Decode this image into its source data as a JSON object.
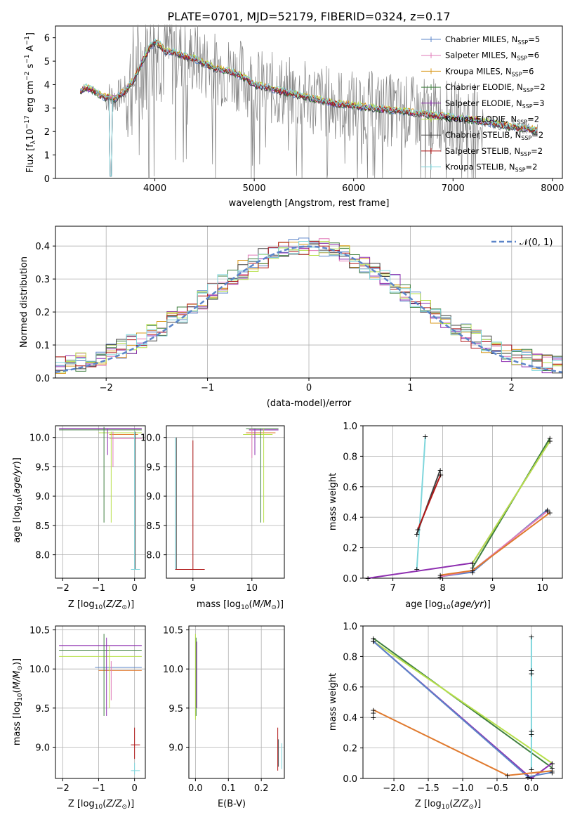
{
  "figure": {
    "title": "PLATE=0701, MJD=52179, FIBERID=0324, z=0.17"
  },
  "legend_entries": [
    {
      "label": "Chabrier MILES, N",
      "sub": "SSP",
      "tail": "=5",
      "color": "#5b84c8"
    },
    {
      "label": "Salpeter MILES, N",
      "sub": "SSP",
      "tail": "=6",
      "color": "#e07ab8"
    },
    {
      "label": "Kroupa MILES, N",
      "sub": "SSP",
      "tail": "=6",
      "color": "#d99a1e"
    },
    {
      "label": "Chabrier ELODIE, N",
      "sub": "SSP",
      "tail": "=2",
      "color": "#3f7f3f"
    },
    {
      "label": "Salpeter ELODIE, N",
      "sub": "SSP",
      "tail": "=3",
      "color": "#8e2fb0"
    },
    {
      "label": "Kroupa ELODIE, N",
      "sub": "SSP",
      "tail": "=2",
      "color": "#b7e04a"
    },
    {
      "label": "Chabrier STELIB, N",
      "sub": "SSP",
      "tail": "=2",
      "color": "#444444"
    },
    {
      "label": "Salpeter STELIB, N",
      "sub": "SSP",
      "tail": "=2",
      "color": "#b01818"
    },
    {
      "label": "Kroupa STELIB, N",
      "sub": "SSP",
      "tail": "=2",
      "color": "#7fd6dc"
    }
  ],
  "chart_data": [
    {
      "id": "spectrum",
      "type": "line",
      "xlabel": "wavelength [Angstrom, rest frame]",
      "ylabel": "Flux [f",
      "ylabel_parts": [
        "Flux [f",
        "λ",
        "10",
        "−17",
        " erg cm",
        "−2",
        " s",
        "−1",
        " A",
        "−1",
        "]"
      ],
      "xlim": [
        3000,
        8100
      ],
      "ylim": [
        0,
        6.5
      ],
      "xticks": [
        "4000",
        "5000",
        "6000",
        "7000",
        "8000"
      ],
      "yticks": [
        "0",
        "1",
        "2",
        "3",
        "4",
        "5",
        "6"
      ],
      "data_color": "#808080",
      "model_continuum": {
        "x": [
          3250,
          3300,
          3350,
          3400,
          3450,
          3500,
          3550,
          3600,
          3650,
          3700,
          3750,
          3800,
          3850,
          3900,
          3950,
          4000,
          4050,
          4100,
          4200,
          4300,
          4400,
          4500,
          4600,
          4700,
          4800,
          4900,
          5000,
          5200,
          5400,
          5600,
          5800,
          6000,
          6200,
          6400,
          6600,
          6800,
          7000,
          7200,
          7400,
          7600,
          7850
        ],
        "y": [
          3.7,
          3.9,
          3.8,
          3.7,
          3.55,
          3.45,
          3.5,
          3.4,
          3.6,
          3.7,
          4.0,
          4.3,
          4.8,
          5.2,
          5.6,
          5.8,
          5.7,
          5.4,
          5.4,
          5.2,
          5.1,
          4.9,
          4.7,
          4.6,
          4.5,
          4.3,
          4.0,
          3.8,
          3.6,
          3.4,
          3.2,
          3.1,
          3.0,
          2.9,
          2.8,
          2.7,
          2.6,
          2.5,
          2.35,
          2.2,
          2.05
        ]
      },
      "legend_position": "right"
    },
    {
      "id": "residuals",
      "type": "histogram",
      "xlabel": "(data-model)/error",
      "ylabel": "Normed distribution",
      "xlim": [
        -2.5,
        2.5
      ],
      "ylim": [
        0,
        0.46
      ],
      "xticks": [
        "−2",
        "−1",
        "0",
        "1",
        "2"
      ],
      "yticks": [
        "0.0",
        "0.1",
        "0.2",
        "0.3",
        "0.4"
      ],
      "gaussian_label": "𝒩(0, 1)",
      "gaussian_color": "#5b84c8",
      "legend_position": "top-right"
    },
    {
      "id": "age-vs-Z",
      "type": "scatter",
      "xlabel": "Z [log10(Z/Z⊙)]",
      "ylabel": "age  [log10(age/yr)]",
      "xlim": [
        -2.2,
        0.3
      ],
      "ylim": [
        7.6,
        10.2
      ],
      "xticks": [
        "−2",
        "−1",
        "0"
      ],
      "yticks": [
        "8.0",
        "8.5",
        "9.0",
        "9.5",
        "10.0"
      ]
    },
    {
      "id": "age-vs-mass",
      "type": "scatter",
      "xlabel": "mass [log10(M/M⊙)]",
      "ylabel": "",
      "xlim": [
        8.55,
        10.55
      ],
      "ylim": [
        7.6,
        10.2
      ],
      "xticks": [
        "9",
        "10"
      ],
      "yticks": [
        "8.0",
        "8.5",
        "9.0",
        "9.5",
        "10.0"
      ]
    },
    {
      "id": "weight-vs-age",
      "type": "line",
      "xlabel": "age  [log10(age/yr)]",
      "ylabel": "mass weight",
      "xlim": [
        6.4,
        10.4
      ],
      "ylim": [
        0,
        1.0
      ],
      "xticks": [
        "7",
        "8",
        "9",
        "10"
      ],
      "yticks": [
        "0.0",
        "0.2",
        "0.4",
        "0.6",
        "0.8",
        "1.0"
      ],
      "series": [
        {
          "color": "#7fd6dc",
          "x": [
            7.48,
            7.65
          ],
          "y": [
            0.06,
            0.93
          ]
        },
        {
          "color": "#444444",
          "x": [
            7.48,
            7.95
          ],
          "y": [
            0.29,
            0.71
          ]
        },
        {
          "color": "#b01818",
          "x": [
            7.5,
            7.96
          ],
          "y": [
            0.32,
            0.68
          ]
        },
        {
          "color": "#8e2fb0",
          "x": [
            6.5,
            8.6,
            10.15
          ],
          "y": [
            0.0,
            0.1,
            0.9
          ]
        },
        {
          "color": "#3f7f3f",
          "x": [
            8.6,
            10.15
          ],
          "y": [
            0.07,
            0.92
          ]
        },
        {
          "color": "#b7e04a",
          "x": [
            8.6,
            10.15
          ],
          "y": [
            0.1,
            0.9
          ]
        },
        {
          "color": "#5b84c8",
          "x": [
            7.95,
            8.6,
            10.1
          ],
          "y": [
            0.01,
            0.04,
            0.45
          ]
        },
        {
          "color": "#e07ab8",
          "x": [
            7.95,
            8.6,
            10.1
          ],
          "y": [
            0.01,
            0.05,
            0.44
          ]
        },
        {
          "color": "#e07a2e",
          "x": [
            7.95,
            8.6,
            10.15
          ],
          "y": [
            0.02,
            0.05,
            0.43
          ]
        }
      ]
    },
    {
      "id": "mass-vs-Z",
      "type": "scatter",
      "xlabel": "Z [log10(Z/Z⊙)]",
      "ylabel": "mass [log10(M/M⊙)]",
      "xlim": [
        -2.2,
        0.3
      ],
      "ylim": [
        8.6,
        10.55
      ],
      "xticks": [
        "−2",
        "−1",
        "0"
      ],
      "yticks": [
        "9.0",
        "9.5",
        "10.0",
        "10.5"
      ]
    },
    {
      "id": "mass-vs-ebv",
      "type": "scatter",
      "xlabel": "E(B-V)",
      "ylabel": "",
      "xlim": [
        -0.02,
        0.27
      ],
      "ylim": [
        8.6,
        10.55
      ],
      "xticks": [
        "0.0",
        "0.1",
        "0.2"
      ],
      "yticks": [
        "9.0",
        "9.5",
        "10.0",
        "10.5"
      ]
    },
    {
      "id": "weight-vs-Z",
      "type": "line",
      "xlabel": "Z [log10(Z/Z⊙)]",
      "ylabel": "mass weight",
      "xlim": [
        -2.45,
        0.45
      ],
      "ylim": [
        0,
        1.0
      ],
      "xticks": [
        "−2.0",
        "−1.5",
        "−1.0",
        "−0.5",
        "0.0"
      ],
      "yticks": [
        "0.0",
        "0.2",
        "0.4",
        "0.6",
        "0.8",
        "1.0"
      ],
      "series": [
        {
          "color": "#3f7f3f",
          "x": [
            -2.3,
            0.3
          ],
          "y": [
            0.92,
            0.07
          ]
        },
        {
          "color": "#b7e04a",
          "x": [
            -2.3,
            0.3
          ],
          "y": [
            0.9,
            0.1
          ]
        },
        {
          "color": "#8e2fb0",
          "x": [
            -2.3,
            0.0,
            0.3
          ],
          "y": [
            0.9,
            0.0,
            0.1
          ]
        },
        {
          "color": "#5b84c8",
          "x": [
            -2.3,
            -0.05,
            0.3
          ],
          "y": [
            0.9,
            0.01,
            0.04
          ]
        },
        {
          "color": "#e07a2e",
          "x": [
            -2.3,
            -0.35,
            0.3
          ],
          "y": [
            0.45,
            0.02,
            0.05
          ]
        },
        {
          "color": "#7fd6dc",
          "x": [
            0.0,
            0.0
          ],
          "y": [
            0.06,
            0.93
          ]
        }
      ]
    }
  ]
}
